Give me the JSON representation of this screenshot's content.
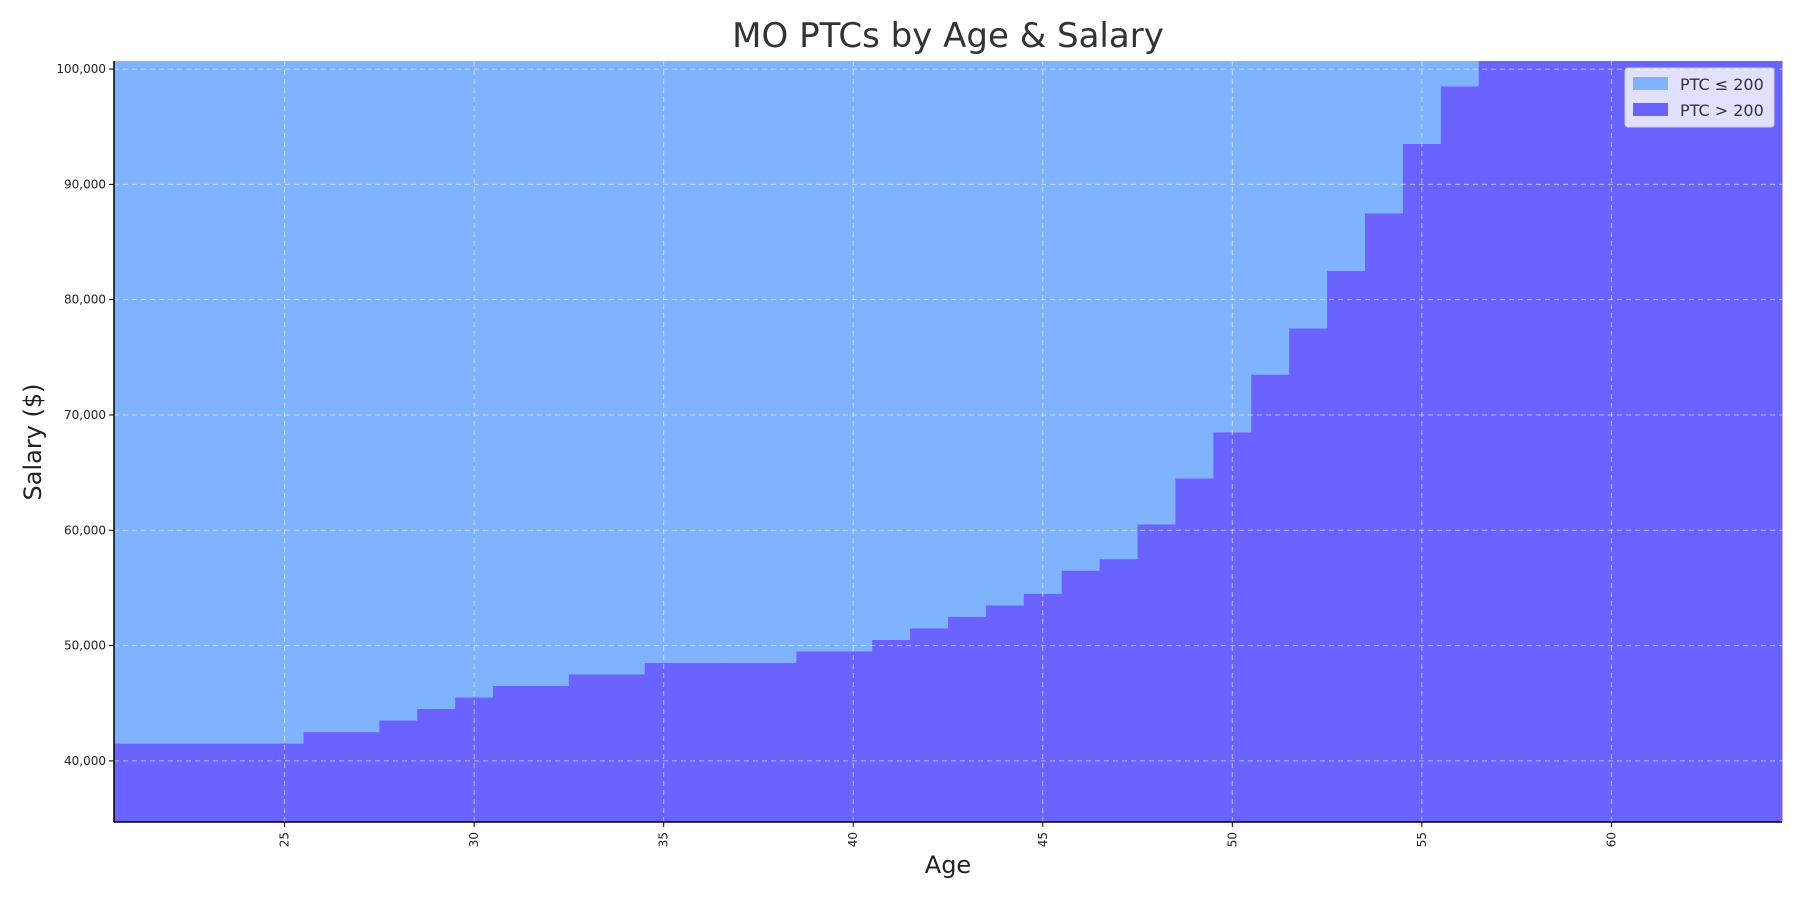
{
  "chart_data": {
    "type": "area",
    "title": "MO PTCs by Age & Salary",
    "xlabel": "Age",
    "ylabel": "Salary ($)",
    "xlim": [
      20.5,
      64.5
    ],
    "ylim": [
      34700,
      100700
    ],
    "x_ticks": [
      25,
      30,
      35,
      40,
      45,
      50,
      55,
      60
    ],
    "y_ticks": [
      40000,
      50000,
      60000,
      70000,
      80000,
      90000,
      100000
    ],
    "y_tick_labels": [
      "40,000",
      "50,000",
      "60,000",
      "70,000",
      "80,000",
      "90,000",
      "100,000"
    ],
    "grid": true,
    "legend_position": "top-right",
    "series": [
      {
        "name": "PTC ≤ 200",
        "color": "#7fb3fe"
      },
      {
        "name": "PTC > 200",
        "color": "#6b63ff"
      }
    ],
    "ages": [
      21,
      22,
      23,
      24,
      25,
      26,
      27,
      28,
      29,
      30,
      31,
      32,
      33,
      34,
      35,
      36,
      37,
      38,
      39,
      40,
      41,
      42,
      43,
      44,
      45,
      46,
      47,
      48,
      49,
      50,
      51,
      52,
      53,
      54,
      55,
      56,
      57,
      58,
      59,
      60,
      61,
      62,
      63,
      64
    ],
    "threshold_salary": [
      41500,
      41500,
      41500,
      41500,
      41500,
      42500,
      42500,
      43500,
      44500,
      45500,
      46500,
      46500,
      47500,
      47500,
      48500,
      48500,
      48500,
      48500,
      49500,
      49500,
      50500,
      51500,
      52500,
      53500,
      54500,
      56500,
      57500,
      60500,
      64500,
      68500,
      73500,
      77500,
      82500,
      87500,
      93500,
      98500,
      100700,
      100700,
      100700,
      100700,
      100700,
      100700,
      100700,
      100700
    ]
  }
}
